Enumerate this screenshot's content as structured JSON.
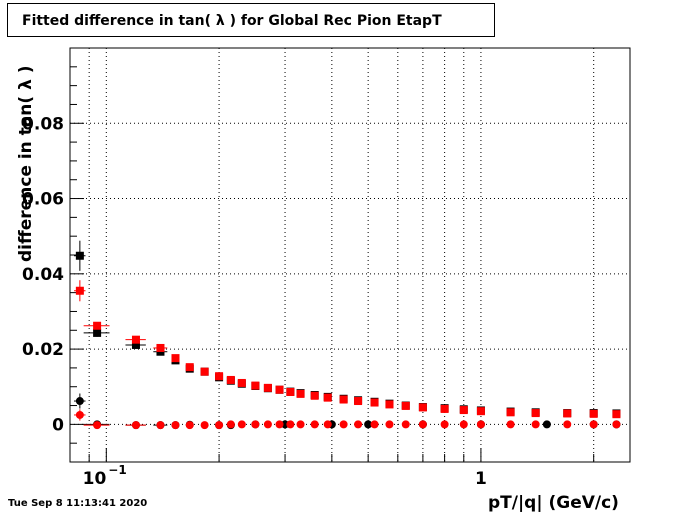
{
  "chart_data": {
    "type": "scatter",
    "title": "Fitted difference in tan( λ ) for Global Rec Pion EtapT",
    "xlabel": "pT/|q| (GeV/c)",
    "ylabel": "difference in tan( λ )",
    "xscale": "log",
    "xlim": [
      0.08,
      2.5
    ],
    "ylim": [
      -0.01,
      0.1
    ],
    "x_tick_labels": [
      {
        "value": 0.1,
        "base": "10",
        "exp": "−1"
      },
      {
        "value": 1,
        "base": "1",
        "exp": ""
      }
    ],
    "y_ticks": [
      0,
      0.02,
      0.04,
      0.06,
      0.08
    ],
    "y_tick_labels": [
      "0",
      "0.02",
      "0.04",
      "0.06",
      "0.08"
    ],
    "grid": true,
    "series": [
      {
        "color": "#000000",
        "marker": "square",
        "points": [
          {
            "x": 0.085,
            "y": 0.0448,
            "xerr": 0.003,
            "yerr": 0.004
          },
          {
            "x": 0.0945,
            "y": 0.0243,
            "xerr": 0.0075,
            "yerr": 0.001
          },
          {
            "x": 0.12,
            "y": 0.0211,
            "xerr": 0.0075,
            "yerr": 0.0008
          },
          {
            "x": 0.1395,
            "y": 0.0193,
            "xerr": 0.006
          },
          {
            "x": 0.153,
            "y": 0.017
          },
          {
            "x": 0.167,
            "y": 0.0148
          },
          {
            "x": 0.183,
            "y": 0.014
          },
          {
            "x": 0.2,
            "y": 0.0125
          },
          {
            "x": 0.215,
            "y": 0.0116
          },
          {
            "x": 0.23,
            "y": 0.0108
          },
          {
            "x": 0.25,
            "y": 0.0102
          },
          {
            "x": 0.27,
            "y": 0.0096
          },
          {
            "x": 0.29,
            "y": 0.0092
          },
          {
            "x": 0.31,
            "y": 0.0087
          },
          {
            "x": 0.33,
            "y": 0.0083
          },
          {
            "x": 0.36,
            "y": 0.0078
          },
          {
            "x": 0.39,
            "y": 0.0073
          },
          {
            "x": 0.43,
            "y": 0.0068
          },
          {
            "x": 0.47,
            "y": 0.0064
          },
          {
            "x": 0.52,
            "y": 0.006
          },
          {
            "x": 0.57,
            "y": 0.0055
          },
          {
            "x": 0.63,
            "y": 0.005
          },
          {
            "x": 0.7,
            "y": 0.0046
          },
          {
            "x": 0.8,
            "y": 0.0043
          },
          {
            "x": 0.9,
            "y": 0.004
          },
          {
            "x": 1.0,
            "y": 0.0037
          },
          {
            "x": 1.2,
            "y": 0.0034
          },
          {
            "x": 1.4,
            "y": 0.0032
          },
          {
            "x": 1.7,
            "y": 0.003
          },
          {
            "x": 2.0,
            "y": 0.003
          },
          {
            "x": 2.3,
            "y": 0.0029
          }
        ]
      },
      {
        "color": "#ff0000",
        "marker": "square",
        "points": [
          {
            "x": 0.085,
            "y": 0.0355,
            "xerr": 0.003,
            "yerr": 0.0028
          },
          {
            "x": 0.0945,
            "y": 0.0262,
            "xerr": 0.0075,
            "yerr": 0.001
          },
          {
            "x": 0.12,
            "y": 0.0225,
            "xerr": 0.0075,
            "yerr": 0.0008
          },
          {
            "x": 0.1395,
            "y": 0.0203,
            "xerr": 0.006
          },
          {
            "x": 0.153,
            "y": 0.0176
          },
          {
            "x": 0.167,
            "y": 0.0152
          },
          {
            "x": 0.183,
            "y": 0.014
          },
          {
            "x": 0.2,
            "y": 0.0128
          },
          {
            "x": 0.215,
            "y": 0.0118
          },
          {
            "x": 0.23,
            "y": 0.011
          },
          {
            "x": 0.25,
            "y": 0.0103
          },
          {
            "x": 0.27,
            "y": 0.0097
          },
          {
            "x": 0.29,
            "y": 0.0092
          },
          {
            "x": 0.31,
            "y": 0.0086
          },
          {
            "x": 0.33,
            "y": 0.0081
          },
          {
            "x": 0.36,
            "y": 0.0076
          },
          {
            "x": 0.39,
            "y": 0.0071
          },
          {
            "x": 0.43,
            "y": 0.0066
          },
          {
            "x": 0.47,
            "y": 0.0062
          },
          {
            "x": 0.52,
            "y": 0.0058
          },
          {
            "x": 0.57,
            "y": 0.0053
          },
          {
            "x": 0.63,
            "y": 0.0049
          },
          {
            "x": 0.7,
            "y": 0.0045
          },
          {
            "x": 0.8,
            "y": 0.0041
          },
          {
            "x": 0.9,
            "y": 0.0038
          },
          {
            "x": 1.0,
            "y": 0.0035
          },
          {
            "x": 1.2,
            "y": 0.0032
          },
          {
            "x": 1.4,
            "y": 0.003
          },
          {
            "x": 1.7,
            "y": 0.0029
          },
          {
            "x": 2.0,
            "y": 0.0028
          },
          {
            "x": 2.3,
            "y": 0.0027
          }
        ]
      },
      {
        "color": "#000000",
        "marker": "circle",
        "points": [
          {
            "x": 0.085,
            "y": 0.0062,
            "xerr": 0.003,
            "yerr": 0.002
          },
          {
            "x": 0.0945,
            "y": 0.0,
            "xerr": 0.0075
          },
          {
            "x": 0.12,
            "y": -0.0002,
            "xerr": 0.0075
          },
          {
            "x": 0.1395,
            "y": -0.0002,
            "xerr": 0.006
          },
          {
            "x": 0.153,
            "y": -0.0002
          },
          {
            "x": 0.167,
            "y": -0.0001
          },
          {
            "x": 0.2,
            "y": -0.0002
          },
          {
            "x": 0.215,
            "y": -0.0002
          },
          {
            "x": 0.25,
            "y": 0.0
          },
          {
            "x": 0.3,
            "y": 0.0
          },
          {
            "x": 0.4,
            "y": 0.0
          },
          {
            "x": 0.5,
            "y": 0.0
          },
          {
            "x": 0.7,
            "y": 0.0
          },
          {
            "x": 1.0,
            "y": 0.0
          },
          {
            "x": 1.5,
            "y": 0.0
          },
          {
            "x": 2.0,
            "y": 0.0
          },
          {
            "x": 2.3,
            "y": 0.0
          }
        ]
      },
      {
        "color": "#ff0000",
        "marker": "circle",
        "points": [
          {
            "x": 0.085,
            "y": 0.0025,
            "xerr": 0.003,
            "yerr": 0.0015
          },
          {
            "x": 0.0945,
            "y": -0.0002,
            "xerr": 0.0075
          },
          {
            "x": 0.12,
            "y": -0.0002,
            "xerr": 0.0075
          },
          {
            "x": 0.1395,
            "y": -0.0002
          },
          {
            "x": 0.153,
            "y": -0.0002
          },
          {
            "x": 0.167,
            "y": -0.0002
          },
          {
            "x": 0.183,
            "y": -0.0002
          },
          {
            "x": 0.2,
            "y": -0.0002
          },
          {
            "x": 0.215,
            "y": 0.0
          },
          {
            "x": 0.23,
            "y": 0.0
          },
          {
            "x": 0.25,
            "y": 0.0
          },
          {
            "x": 0.27,
            "y": 0.0
          },
          {
            "x": 0.29,
            "y": 0.0
          },
          {
            "x": 0.31,
            "y": 0.0
          },
          {
            "x": 0.33,
            "y": 0.0
          },
          {
            "x": 0.36,
            "y": 0.0
          },
          {
            "x": 0.39,
            "y": 0.0
          },
          {
            "x": 0.43,
            "y": 0.0
          },
          {
            "x": 0.47,
            "y": 0.0
          },
          {
            "x": 0.52,
            "y": 0.0
          },
          {
            "x": 0.57,
            "y": 0.0
          },
          {
            "x": 0.63,
            "y": 0.0
          },
          {
            "x": 0.7,
            "y": 0.0
          },
          {
            "x": 0.8,
            "y": 0.0
          },
          {
            "x": 0.9,
            "y": 0.0
          },
          {
            "x": 1.0,
            "y": 0.0
          },
          {
            "x": 1.2,
            "y": 0.0
          },
          {
            "x": 1.4,
            "y": 0.0
          },
          {
            "x": 1.7,
            "y": 0.0
          },
          {
            "x": 2.0,
            "y": 0.0
          },
          {
            "x": 2.3,
            "y": 0.0
          }
        ]
      }
    ]
  },
  "footer": {
    "timestamp": "Tue Sep  8 11:13:41 2020"
  }
}
